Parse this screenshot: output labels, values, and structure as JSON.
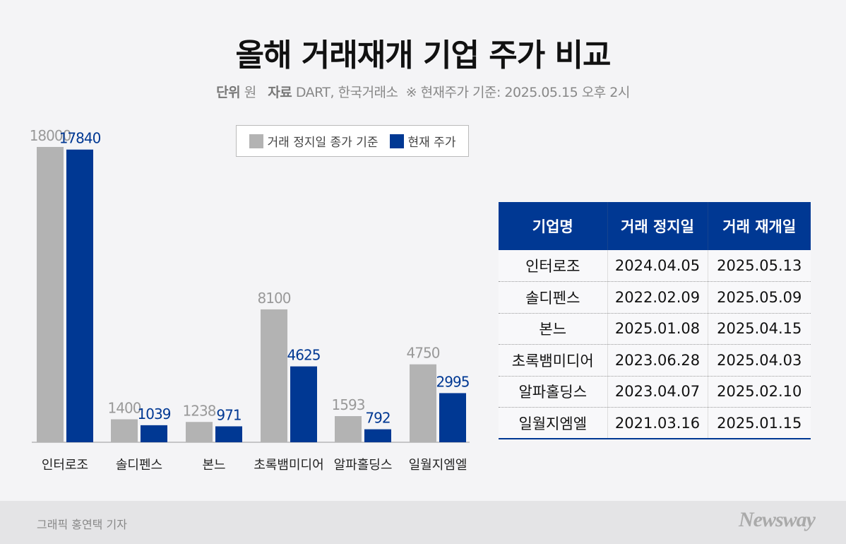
{
  "title": "올해 거래재개 기업 주가 비교",
  "subtitle": {
    "unit_label": "단위",
    "unit": "원",
    "source_label": "자료",
    "source": "DART, 한국거래소",
    "note": "※ 현재주가 기준: 2025.05.15 오후 2시"
  },
  "colors": {
    "before": "#b3b3b3",
    "current": "#003893",
    "before_label": "#999999"
  },
  "chart_data": {
    "type": "bar",
    "categories": [
      "인터로조",
      "솔디펜스",
      "본느",
      "초록뱀미디어",
      "알파홀딩스",
      "일월지엠엘"
    ],
    "series": [
      {
        "name": "거래 정지일 종가 기준",
        "values": [
          18000,
          1400,
          1238,
          8100,
          1593,
          4750
        ]
      },
      {
        "name": "현재 주가",
        "values": [
          17840,
          1039,
          971,
          4625,
          792,
          2995
        ]
      }
    ],
    "ylim": [
      0,
      18000
    ],
    "grid": false,
    "legend": "top"
  },
  "table": {
    "headers": [
      "기업명",
      "거래 정지일",
      "거래 재개일"
    ],
    "rows": [
      [
        "인터로조",
        "2024.04.05",
        "2025.05.13"
      ],
      [
        "솔디펜스",
        "2022.02.09",
        "2025.05.09"
      ],
      [
        "본느",
        "2025.01.08",
        "2025.04.15"
      ],
      [
        "초록뱀미디어",
        "2023.06.28",
        "2025.04.03"
      ],
      [
        "알파홀딩스",
        "2023.04.07",
        "2025.02.10"
      ],
      [
        "일월지엠엘",
        "2021.03.16",
        "2025.01.15"
      ]
    ]
  },
  "footer": {
    "credit": "그래픽 홍연택 기자",
    "logo": "Newsway"
  }
}
